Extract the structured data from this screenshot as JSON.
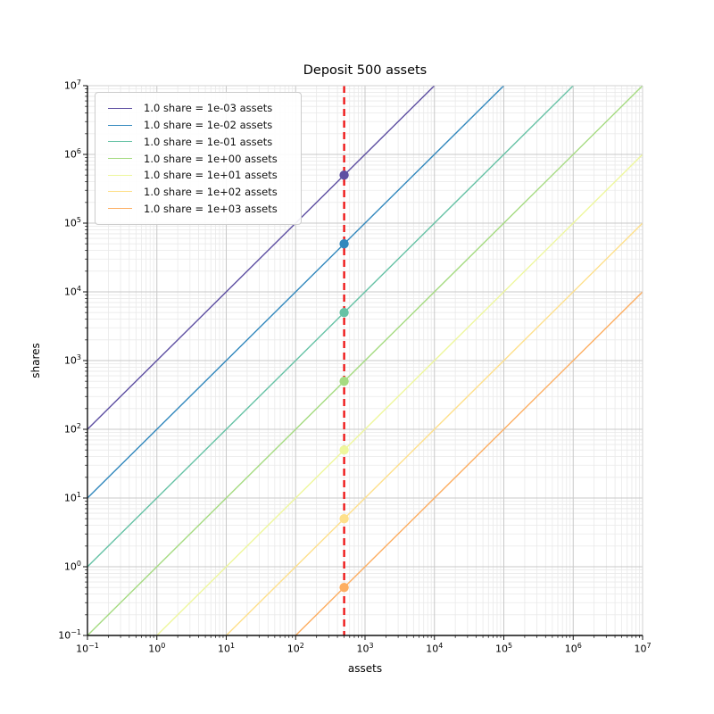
{
  "chart_data": {
    "type": "line",
    "title": "Deposit 500 assets",
    "xlabel": "assets",
    "ylabel": "shares",
    "xscale": "log",
    "yscale": "log",
    "xlim": [
      0.1,
      10000000
    ],
    "ylim": [
      0.1,
      10000000
    ],
    "x_tick_exponents": [
      -1,
      0,
      1,
      2,
      3,
      4,
      5,
      6,
      7
    ],
    "y_tick_exponents": [
      -1,
      0,
      1,
      2,
      3,
      4,
      5,
      6,
      7
    ],
    "grid": {
      "major_color": "#c8c8c8",
      "minor_color": "#e9e9e9",
      "visible": true
    },
    "legend_position": "upper left",
    "deposit_line": {
      "x": 500,
      "color": "#ee1111",
      "style": "dashed"
    },
    "series": [
      {
        "label": "1.0 share = 1e-03 assets",
        "assets_per_share": 0.001,
        "color": "#5e4fa2",
        "point": {
          "assets": 500,
          "shares": 500000
        }
      },
      {
        "label": "1.0 share = 1e-02 assets",
        "assets_per_share": 0.01,
        "color": "#3288bd",
        "point": {
          "assets": 500,
          "shares": 50000
        }
      },
      {
        "label": "1.0 share = 1e-01 assets",
        "assets_per_share": 0.1,
        "color": "#66c2a5",
        "point": {
          "assets": 500,
          "shares": 5000
        }
      },
      {
        "label": "1.0 share = 1e+00 assets",
        "assets_per_share": 1,
        "color": "#a5db81",
        "point": {
          "assets": 500,
          "shares": 500
        }
      },
      {
        "label": "1.0 share = 1e+01 assets",
        "assets_per_share": 10,
        "color": "#eef79d",
        "point": {
          "assets": 500,
          "shares": 50
        }
      },
      {
        "label": "1.0 share = 1e+02 assets",
        "assets_per_share": 100,
        "color": "#fee08b",
        "point": {
          "assets": 500,
          "shares": 5
        }
      },
      {
        "label": "1.0 share = 1e+03 assets",
        "assets_per_share": 1000,
        "color": "#fdae61",
        "point": {
          "assets": 500,
          "shares": 0.5
        }
      }
    ]
  }
}
